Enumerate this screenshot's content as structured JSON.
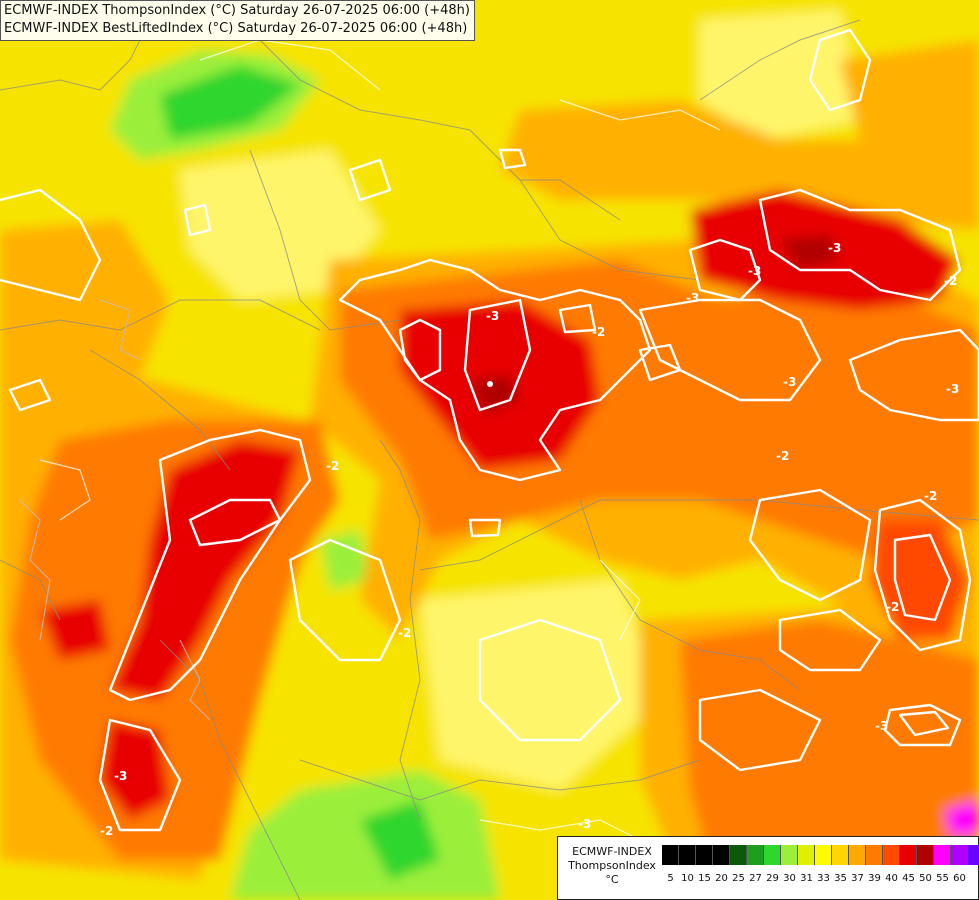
{
  "header": {
    "line1": "ECMWF-INDEX ThompsonIndex (°C) Saturday 26-07-2025 06:00 (+48h)",
    "line2": "ECMWF-INDEX BestLiftedIndex (°C) Saturday 26-07-2025 06:00 (+48h)"
  },
  "legend": {
    "model": "ECMWF-INDEX",
    "parameter": "ThompsonIndex",
    "unit": "°C",
    "ticks": [
      "5",
      "10",
      "15",
      "20",
      "25",
      "27",
      "29",
      "30",
      "31",
      "33",
      "35",
      "37",
      "39",
      "40",
      "45",
      "50",
      "55",
      "60"
    ],
    "colors": [
      "#000000",
      "#000000",
      "#000000",
      "#000000",
      "#0a5a0a",
      "#1e9e1e",
      "#2ed62e",
      "#9bef3a",
      "#dcf000",
      "#fffa00",
      "#ffd400",
      "#ffa800",
      "#ff7a00",
      "#ff4a00",
      "#e80000",
      "#b00000",
      "#ff00ff",
      "#b000ff",
      "#6a00ff",
      "#0000ff"
    ]
  },
  "contour_labels": [
    "-3",
    "-2",
    "-2",
    "-3",
    "-2",
    "-3",
    "-3",
    "-2",
    "-2",
    "-3",
    "-2",
    "-3",
    "-2",
    "-3",
    "-2",
    "-3",
    "-3"
  ]
}
